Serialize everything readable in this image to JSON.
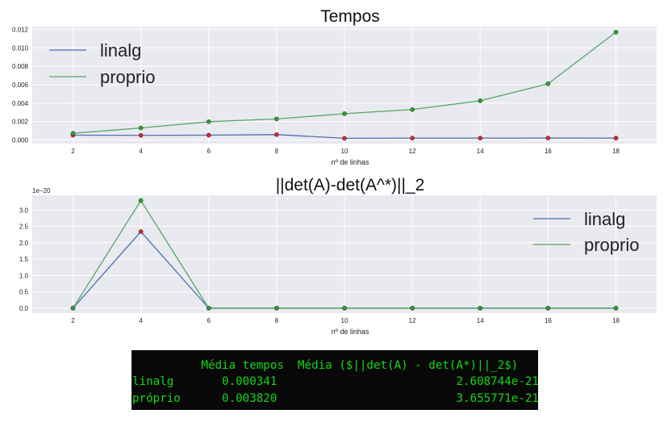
{
  "chart_data": [
    {
      "type": "line",
      "title": "Tempos",
      "xlabel": "nº de linhas",
      "ylabel": "",
      "x": [
        2,
        4,
        6,
        8,
        10,
        12,
        14,
        16,
        18
      ],
      "xlim": [
        0.8,
        19.2
      ],
      "ylim": [
        -0.0004,
        0.0123
      ],
      "xticks": [
        2,
        4,
        6,
        8,
        10,
        12,
        14,
        16,
        18
      ],
      "yticks": [
        0.0,
        0.002,
        0.004,
        0.006,
        0.008,
        0.01,
        0.012
      ],
      "ytick_labels": [
        "0.000",
        "0.002",
        "0.004",
        "0.006",
        "0.008",
        "0.010",
        "0.012"
      ],
      "offset_text": "",
      "grid": true,
      "legend_position": "top-left",
      "series": [
        {
          "name": "linalg",
          "color": "#4c72b0",
          "marker_color": "#d62728",
          "values": [
            0.00052,
            0.0005,
            0.00052,
            0.00058,
            0.00018,
            0.0002,
            0.0002,
            0.00021,
            0.0002
          ]
        },
        {
          "name": "proprio",
          "color": "#55a868",
          "marker_color": "#2ca02c",
          "values": [
            0.00072,
            0.0013,
            0.00198,
            0.00228,
            0.00285,
            0.0033,
            0.00425,
            0.0061,
            0.0117
          ]
        }
      ]
    },
    {
      "type": "line",
      "title": "||det(A)-det(A^*)||_2",
      "xlabel": "nº de linhas",
      "ylabel": "",
      "x": [
        2,
        4,
        6,
        8,
        10,
        12,
        14,
        16,
        18
      ],
      "xlim": [
        0.8,
        19.2
      ],
      "ylim": [
        -0.15,
        3.45
      ],
      "xticks": [
        2,
        4,
        6,
        8,
        10,
        12,
        14,
        16,
        18
      ],
      "yticks": [
        0.0,
        0.5,
        1.0,
        1.5,
        2.0,
        2.5,
        3.0
      ],
      "ytick_labels": [
        "0.0",
        "0.5",
        "1.0",
        "1.5",
        "2.0",
        "2.5",
        "3.0"
      ],
      "offset_text": "1e−20",
      "grid": true,
      "legend_position": "top-right",
      "series": [
        {
          "name": "linalg",
          "color": "#4c72b0",
          "marker_color": "#d62728",
          "values": [
            0,
            2.34,
            0,
            0,
            0,
            0,
            0,
            0,
            0
          ]
        },
        {
          "name": "proprio",
          "color": "#55a868",
          "marker_color": "#2ca02c",
          "values": [
            0,
            3.29,
            0,
            0,
            0,
            0,
            0,
            0,
            0
          ]
        }
      ]
    }
  ],
  "terminal": {
    "header": "          Média tempos  Média ($||det(A) - det(A*)||_2$)",
    "rows": [
      "linalg       0.000341                          2.608744e-21",
      "próprio      0.003820                          3.655771e-21"
    ]
  }
}
